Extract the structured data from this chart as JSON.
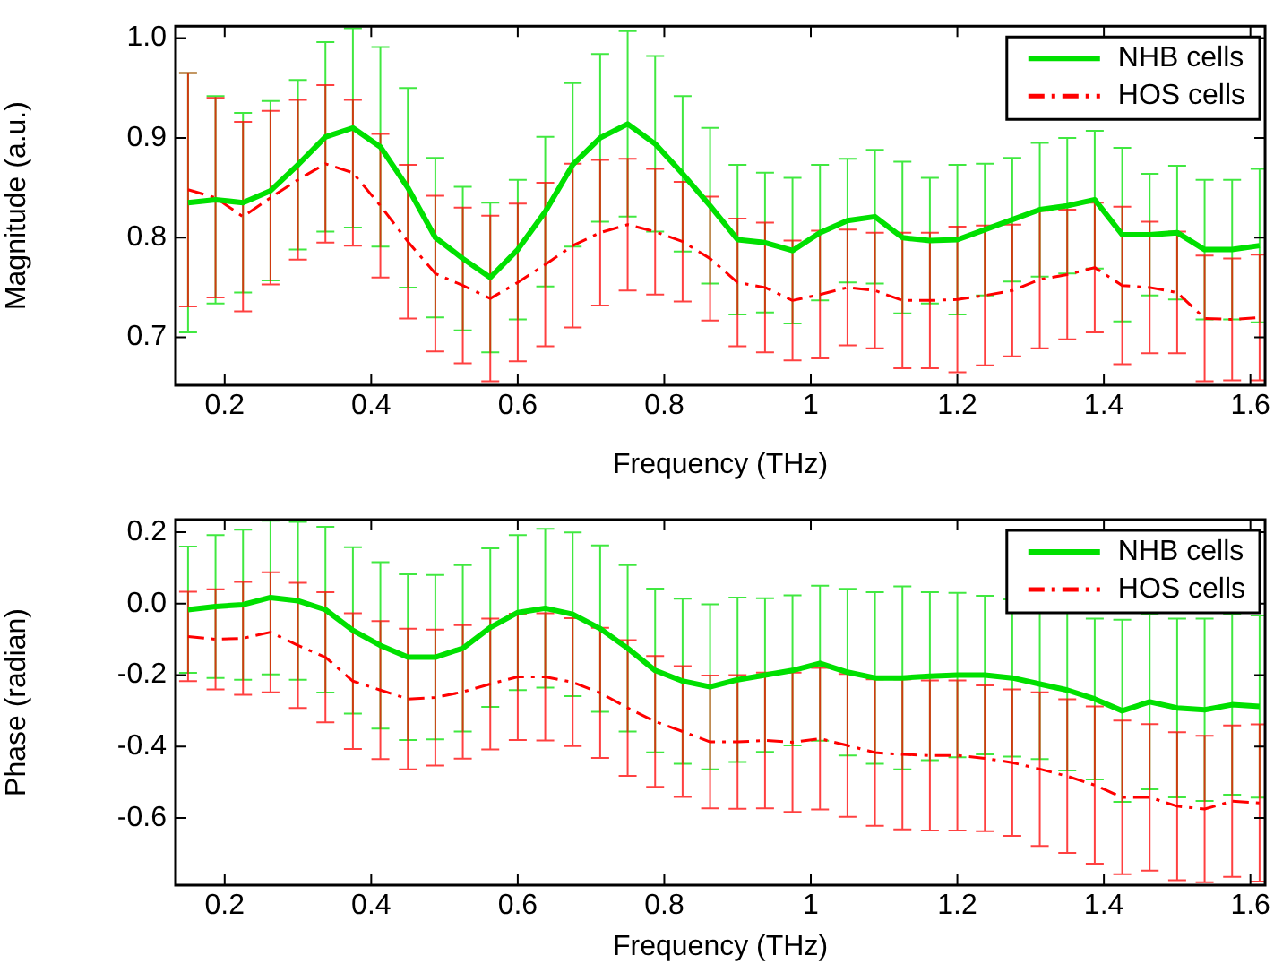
{
  "chart_data": [
    {
      "type": "line",
      "xlabel": "Frequency (THz)",
      "ylabel": "Magnitude (a.u.)",
      "legend": "top right",
      "marker": "none",
      "x": [
        0.15,
        0.1875,
        0.225,
        0.2625,
        0.3,
        0.3375,
        0.375,
        0.4125,
        0.45,
        0.4875,
        0.525,
        0.5625,
        0.6,
        0.6375,
        0.675,
        0.7125,
        0.75,
        0.7875,
        0.825,
        0.8625,
        0.9,
        0.9375,
        0.975,
        1.0125,
        1.05,
        1.0875,
        1.125,
        1.1625,
        1.2,
        1.2375,
        1.275,
        1.3125,
        1.35,
        1.3875,
        1.425,
        1.4625,
        1.5,
        1.5375,
        1.575,
        1.6125
      ],
      "xlim": [
        0.133,
        1.62
      ],
      "xticks": [
        0.2,
        0.4,
        0.6,
        0.8,
        1,
        1.2,
        1.4,
        1.6
      ],
      "ylim": [
        0.652,
        1.012
      ],
      "yticks": [
        0.7,
        0.8,
        0.9,
        {
          "value": 1,
          "label": "1.0"
        }
      ],
      "series": [
        {
          "name": "NHB cells",
          "color": "#00e000",
          "line_style": "solid",
          "values": [
            0.835,
            0.838,
            0.835,
            0.847,
            0.873,
            0.901,
            0.91,
            0.891,
            0.85,
            0.8,
            0.779,
            0.76,
            0.788,
            0.826,
            0.873,
            0.9,
            0.914,
            0.894,
            0.864,
            0.832,
            0.798,
            0.795,
            0.787,
            0.805,
            0.817,
            0.821,
            0.8,
            0.797,
            0.798,
            0.808,
            0.818,
            0.828,
            0.832,
            0.838,
            0.803,
            0.803,
            0.805,
            0.788,
            0.788,
            0.792
          ],
          "errors": [
            0.13,
            0.104,
            0.09,
            0.09,
            0.085,
            0.095,
            0.1,
            0.1,
            0.1,
            0.08,
            0.072,
            0.075,
            0.07,
            0.075,
            0.082,
            0.084,
            0.093,
            0.088,
            0.078,
            0.078,
            0.075,
            0.07,
            0.073,
            0.068,
            0.062,
            0.067,
            0.076,
            0.063,
            0.075,
            0.066,
            0.062,
            0.067,
            0.068,
            0.069,
            0.087,
            0.061,
            0.067,
            0.07,
            0.07,
            0.077
          ]
        },
        {
          "name": "HOS cells",
          "color": "#ff0000",
          "line_style": "dashed",
          "values": [
            0.848,
            0.84,
            0.821,
            0.84,
            0.858,
            0.874,
            0.865,
            0.832,
            0.796,
            0.764,
            0.752,
            0.739,
            0.755,
            0.773,
            0.792,
            0.805,
            0.813,
            0.806,
            0.796,
            0.779,
            0.755,
            0.75,
            0.737,
            0.743,
            0.75,
            0.747,
            0.737,
            0.737,
            0.738,
            0.742,
            0.747,
            0.758,
            0.763,
            0.77,
            0.752,
            0.75,
            0.745,
            0.719,
            0.718,
            0.72
          ],
          "errors": [
            0.117,
            0.1,
            0.095,
            0.087,
            0.08,
            0.079,
            0.073,
            0.072,
            0.077,
            0.078,
            0.078,
            0.083,
            0.079,
            0.082,
            0.082,
            0.073,
            0.066,
            0.063,
            0.06,
            0.062,
            0.064,
            0.065,
            0.06,
            0.064,
            0.058,
            0.058,
            0.068,
            0.068,
            0.073,
            0.07,
            0.066,
            0.069,
            0.065,
            0.065,
            0.079,
            0.066,
            0.061,
            0.063,
            0.061,
            0.063
          ]
        }
      ]
    },
    {
      "type": "line",
      "xlabel": "Frequency (THz)",
      "ylabel": "Phase (radian)",
      "legend": "top right",
      "marker": "none",
      "x": [
        0.15,
        0.1875,
        0.225,
        0.2625,
        0.3,
        0.3375,
        0.375,
        0.4125,
        0.45,
        0.4875,
        0.525,
        0.5625,
        0.6,
        0.6375,
        0.675,
        0.7125,
        0.75,
        0.7875,
        0.825,
        0.8625,
        0.9,
        0.9375,
        0.975,
        1.0125,
        1.05,
        1.0875,
        1.125,
        1.1625,
        1.2,
        1.2375,
        1.275,
        1.3125,
        1.35,
        1.3875,
        1.425,
        1.4625,
        1.5,
        1.5375,
        1.575,
        1.6125
      ],
      "xlim": [
        0.133,
        1.62
      ],
      "xticks": [
        0.2,
        0.4,
        0.6,
        0.8,
        1,
        1.2,
        1.4,
        1.6
      ],
      "ylim": [
        -0.788,
        0.235
      ],
      "yticks": [
        -0.6,
        -0.4,
        -0.2,
        {
          "value": 0,
          "label": "0.0"
        },
        0.2
      ],
      "series": [
        {
          "name": "NHB cells",
          "color": "#00e000",
          "line_style": "solid",
          "values": [
            -0.017,
            -0.008,
            -0.003,
            0.017,
            0.008,
            -0.017,
            -0.075,
            -0.117,
            -0.15,
            -0.15,
            -0.125,
            -0.067,
            -0.025,
            -0.013,
            -0.03,
            -0.07,
            -0.125,
            -0.187,
            -0.217,
            -0.233,
            -0.213,
            -0.2,
            -0.187,
            -0.167,
            -0.192,
            -0.208,
            -0.208,
            -0.203,
            -0.2,
            -0.2,
            -0.208,
            -0.225,
            -0.242,
            -0.267,
            -0.3,
            -0.275,
            -0.292,
            -0.297,
            -0.283,
            -0.288
          ],
          "errors": [
            0.177,
            0.2,
            0.21,
            0.215,
            0.221,
            0.232,
            0.233,
            0.233,
            0.232,
            0.23,
            0.233,
            0.222,
            0.217,
            0.222,
            0.229,
            0.233,
            0.233,
            0.229,
            0.231,
            0.231,
            0.23,
            0.215,
            0.21,
            0.217,
            0.233,
            0.24,
            0.256,
            0.235,
            0.23,
            0.222,
            0.22,
            0.21,
            0.225,
            0.225,
            0.255,
            0.245,
            0.25,
            0.255,
            0.252,
            0.255
          ]
        },
        {
          "name": "HOS cells",
          "color": "#ff0000",
          "line_style": "dashed",
          "values": [
            -0.092,
            -0.1,
            -0.097,
            -0.08,
            -0.117,
            -0.15,
            -0.217,
            -0.242,
            -0.267,
            -0.263,
            -0.247,
            -0.225,
            -0.205,
            -0.205,
            -0.22,
            -0.25,
            -0.292,
            -0.33,
            -0.358,
            -0.387,
            -0.387,
            -0.383,
            -0.388,
            -0.378,
            -0.397,
            -0.417,
            -0.422,
            -0.425,
            -0.425,
            -0.433,
            -0.445,
            -0.463,
            -0.483,
            -0.508,
            -0.542,
            -0.542,
            -0.567,
            -0.575,
            -0.553,
            -0.558
          ],
          "errors": [
            0.125,
            0.14,
            0.158,
            0.168,
            0.175,
            0.182,
            0.19,
            0.193,
            0.197,
            0.19,
            0.187,
            0.183,
            0.177,
            0.178,
            0.179,
            0.182,
            0.19,
            0.183,
            0.183,
            0.186,
            0.187,
            0.19,
            0.195,
            0.198,
            0.2,
            0.205,
            0.21,
            0.21,
            0.21,
            0.204,
            0.205,
            0.215,
            0.215,
            0.22,
            0.215,
            0.205,
            0.207,
            0.205,
            0.212,
            0.22
          ]
        }
      ]
    }
  ]
}
